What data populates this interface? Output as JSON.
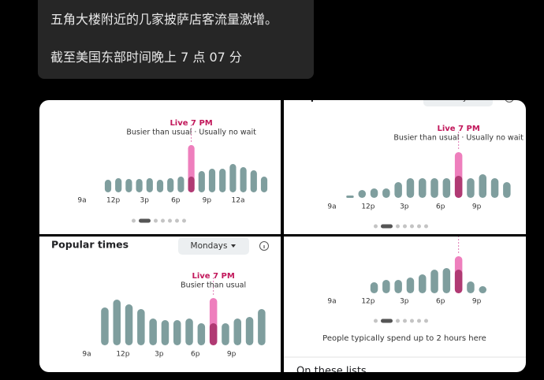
{
  "message": {
    "lines": [
      "五角大楼附近的几家披萨店客流量激增。",
      "截至美国东部时间晚上 7 点 07 分"
    ]
  },
  "chart_data": [
    {
      "type": "bar",
      "live_label": "Live 7 PM",
      "live_status": "Busier than usual · Usually no wait",
      "categories": [
        "9a",
        null,
        null,
        "12p",
        null,
        null,
        "3p",
        null,
        null,
        "6p",
        null,
        null,
        "9p",
        null,
        null,
        "12a",
        null,
        null
      ],
      "values": [
        0,
        0,
        16,
        18,
        17,
        17,
        18,
        16,
        18,
        20,
        20,
        27,
        30,
        30,
        36,
        32,
        28,
        20
      ],
      "live_values": [
        null,
        null,
        null,
        null,
        null,
        null,
        null,
        null,
        null,
        null,
        60,
        null,
        null,
        null,
        null,
        null,
        null,
        null
      ],
      "color": "#7f9e9e",
      "live_color": "#ee7fbd",
      "live_usual_color": "#b03a73"
    },
    {
      "type": "bar",
      "title": "Popular times",
      "day": "Mondays",
      "live_label": "Live 7 PM",
      "live_status": "Busier than usual · Usually no wait",
      "categories": [
        "9a",
        null,
        null,
        "12p",
        null,
        null,
        "3p",
        null,
        null,
        "6p",
        null,
        null,
        "9p",
        null,
        null
      ],
      "values": [
        0,
        3,
        10,
        12,
        12,
        20,
        25,
        25,
        25,
        25,
        28,
        25,
        30,
        25,
        20
      ],
      "live_values": [
        null,
        null,
        null,
        null,
        null,
        null,
        null,
        null,
        null,
        null,
        58,
        null,
        null,
        null,
        null
      ],
      "color": "#7f9e9e",
      "live_color": "#ee7fbd",
      "live_usual_color": "#b03a73"
    },
    {
      "type": "bar",
      "title": "Popular times",
      "day": "Mondays",
      "live_label": "Live 7 PM",
      "live_status": "Busier than usual",
      "categories": [
        "9a",
        null,
        null,
        "12p",
        null,
        null,
        "3p",
        null,
        null,
        "6p",
        null,
        null,
        "9p",
        null,
        null
      ],
      "values": [
        0,
        48,
        58,
        52,
        46,
        34,
        32,
        32,
        34,
        28,
        28,
        28,
        34,
        36,
        46
      ],
      "live_values": [
        null,
        null,
        null,
        null,
        null,
        null,
        null,
        null,
        null,
        null,
        60,
        null,
        null,
        null,
        null
      ],
      "color": "#7f9e9e",
      "live_color": "#ee7fbd",
      "live_usual_color": "#b03a73"
    },
    {
      "type": "bar",
      "note": "People typically spend up to 2 hours here",
      "footer": "On these lists",
      "categories": [
        "9a",
        null,
        null,
        "12p",
        null,
        null,
        "3p",
        null,
        null,
        "6p",
        null,
        null,
        "9p",
        null
      ],
      "values": [
        0,
        0,
        0,
        14,
        17,
        17,
        20,
        24,
        30,
        32,
        30,
        15,
        9,
        0
      ],
      "live_values": [
        null,
        null,
        null,
        null,
        null,
        null,
        null,
        null,
        null,
        null,
        47,
        null,
        null,
        null
      ],
      "color": "#7f9e9e",
      "live_color": "#ee7fbd",
      "live_usual_color": "#b03a73"
    }
  ]
}
